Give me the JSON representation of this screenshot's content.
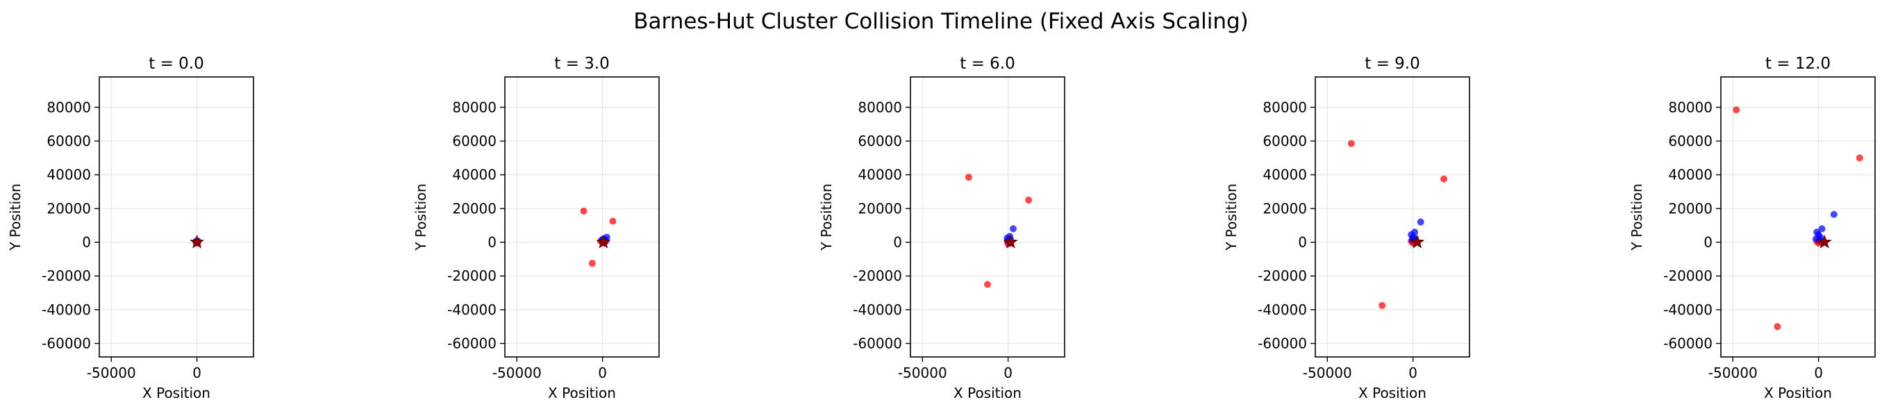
{
  "figure": {
    "suptitle": "Barnes-Hut Cluster Collision Timeline (Fixed Axis Scaling)"
  },
  "colors": {
    "red_points": "#ff0000",
    "blue_points": "#0000ff",
    "star_marker": "#8b0000",
    "grid": "#e6e6e6",
    "axes": "#000000"
  },
  "chart_data": [
    {
      "type": "scatter",
      "title": "t = 0.0",
      "xlabel": "X Position",
      "ylabel": "Y Position",
      "xlim": [
        -57000,
        33000
      ],
      "ylim": [
        -68000,
        98000
      ],
      "xticks": [
        -50000,
        0
      ],
      "yticks": [
        -60000,
        -40000,
        -20000,
        0,
        20000,
        40000,
        60000,
        80000
      ],
      "grid": true,
      "series": [
        {
          "color": "red",
          "points": [
            [
              0,
              0
            ],
            [
              500,
              300
            ],
            [
              -400,
              -200
            ],
            [
              300,
              -500
            ],
            [
              -600,
              400
            ]
          ]
        },
        {
          "color": "blue",
          "points": [
            [
              200,
              400
            ],
            [
              -300,
              600
            ],
            [
              500,
              700
            ],
            [
              -100,
              300
            ]
          ]
        },
        {
          "marker": "star",
          "color": "darkred",
          "points": [
            [
              0,
              0
            ]
          ]
        }
      ]
    },
    {
      "type": "scatter",
      "title": "t = 3.0",
      "xlabel": "X Position",
      "ylabel": "Y Position",
      "xlim": [
        -57000,
        33000
      ],
      "ylim": [
        -68000,
        98000
      ],
      "xticks": [
        -50000,
        0
      ],
      "yticks": [
        -60000,
        -40000,
        -20000,
        0,
        20000,
        40000,
        60000,
        80000
      ],
      "grid": true,
      "series": [
        {
          "color": "red",
          "points": [
            [
              -11000,
              18500
            ],
            [
              6000,
              12500
            ],
            [
              -6000,
              -12500
            ],
            [
              1000,
              -500
            ],
            [
              -1000,
              500
            ],
            [
              0,
              1500
            ]
          ]
        },
        {
          "color": "blue",
          "points": [
            [
              1500,
              1500
            ],
            [
              2500,
              3000
            ],
            [
              500,
              2000
            ],
            [
              2000,
              800
            ],
            [
              -500,
              1200
            ]
          ]
        },
        {
          "marker": "star",
          "color": "darkred",
          "points": [
            [
              500,
              0
            ]
          ]
        }
      ]
    },
    {
      "type": "scatter",
      "title": "t = 6.0",
      "xlabel": "X Position",
      "ylabel": "Y Position",
      "xlim": [
        -57000,
        33000
      ],
      "ylim": [
        -68000,
        98000
      ],
      "xticks": [
        -50000,
        0
      ],
      "yticks": [
        -60000,
        -40000,
        -20000,
        0,
        20000,
        40000,
        60000,
        80000
      ],
      "grid": true,
      "series": [
        {
          "color": "red",
          "points": [
            [
              -23000,
              38500
            ],
            [
              12000,
              25000
            ],
            [
              -12000,
              -25000
            ],
            [
              1000,
              -500
            ],
            [
              -500,
              500
            ],
            [
              0,
              -1000
            ]
          ]
        },
        {
          "color": "blue",
          "points": [
            [
              3000,
              8000
            ],
            [
              1000,
              3500
            ],
            [
              -500,
              2500
            ],
            [
              1500,
              1500
            ],
            [
              0,
              1000
            ]
          ]
        },
        {
          "marker": "star",
          "color": "darkred",
          "points": [
            [
              1500,
              0
            ]
          ]
        }
      ]
    },
    {
      "type": "scatter",
      "title": "t = 9.0",
      "xlabel": "X Position",
      "ylabel": "Y Position",
      "xlim": [
        -57000,
        33000
      ],
      "ylim": [
        -68000,
        98000
      ],
      "xticks": [
        -50000,
        0
      ],
      "yticks": [
        -60000,
        -40000,
        -20000,
        0,
        20000,
        40000,
        60000,
        80000
      ],
      "grid": true,
      "series": [
        {
          "color": "red",
          "points": [
            [
              -36000,
              58500
            ],
            [
              18000,
              37500
            ],
            [
              -18000,
              -37500
            ],
            [
              0,
              -500
            ],
            [
              -1000,
              500
            ],
            [
              1000,
              0
            ]
          ]
        },
        {
          "color": "blue",
          "points": [
            [
              4500,
              12000
            ],
            [
              1000,
              6000
            ],
            [
              -1000,
              4500
            ],
            [
              0,
              3000
            ],
            [
              1500,
              2000
            ],
            [
              -500,
              1500
            ]
          ]
        },
        {
          "marker": "star",
          "color": "darkred",
          "points": [
            [
              2500,
              0
            ]
          ]
        }
      ]
    },
    {
      "type": "scatter",
      "title": "t = 12.0",
      "xlabel": "X Position",
      "ylabel": "Y Position",
      "xlim": [
        -57000,
        33000
      ],
      "ylim": [
        -68000,
        98000
      ],
      "xticks": [
        -50000,
        0
      ],
      "yticks": [
        -60000,
        -40000,
        -20000,
        0,
        20000,
        40000,
        60000,
        80000
      ],
      "grid": true,
      "series": [
        {
          "color": "red",
          "points": [
            [
              -48000,
              78500
            ],
            [
              24000,
              50000
            ],
            [
              -24000,
              -50000
            ],
            [
              0,
              -500
            ],
            [
              -1000,
              500
            ],
            [
              1000,
              0
            ]
          ]
        },
        {
          "color": "blue",
          "points": [
            [
              9000,
              16500
            ],
            [
              2000,
              8000
            ],
            [
              -1000,
              6000
            ],
            [
              0,
              4500
            ],
            [
              1000,
              3000
            ],
            [
              -1500,
              2000
            ],
            [
              500,
              1500
            ]
          ]
        },
        {
          "marker": "star",
          "color": "darkred",
          "points": [
            [
              3500,
              0
            ]
          ]
        }
      ]
    }
  ]
}
